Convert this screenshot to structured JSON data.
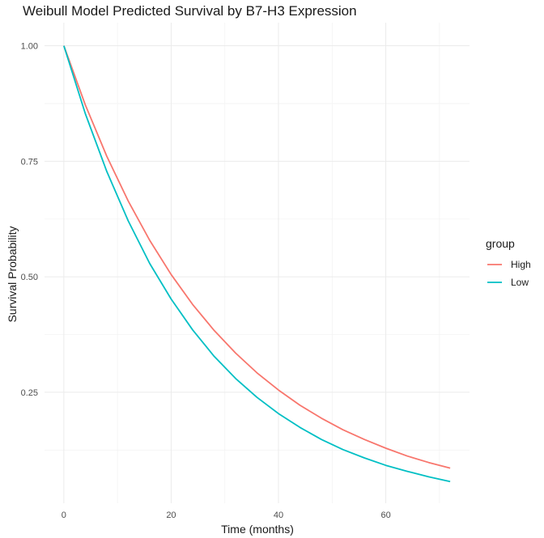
{
  "chart_data": {
    "type": "line",
    "title": "Weibull Model Predicted Survival by B7-H3 Expression",
    "xlabel": "Time (months)",
    "ylabel": "Survival Probability",
    "xlim": [
      -3.6,
      75.6
    ],
    "ylim": [
      0.01,
      1.05
    ],
    "x_ticks": [
      0,
      20,
      40,
      60
    ],
    "y_ticks": [
      0.25,
      0.5,
      0.75,
      1.0
    ],
    "x_tick_labels": [
      "0",
      "20",
      "40",
      "60"
    ],
    "y_tick_labels": [
      "0.25",
      "0.50",
      "0.75",
      "1.00"
    ],
    "grid": true,
    "legend": {
      "title": "group",
      "position": "right"
    },
    "series": [
      {
        "name": "High",
        "color": "#F8766D",
        "x": [
          0,
          4,
          8,
          12,
          16,
          20,
          24,
          28,
          32,
          36,
          40,
          44,
          48,
          52,
          56,
          60,
          64,
          68,
          72
        ],
        "y": [
          1.0,
          0.872,
          0.761,
          0.664,
          0.579,
          0.505,
          0.44,
          0.384,
          0.335,
          0.292,
          0.255,
          0.222,
          0.194,
          0.169,
          0.148,
          0.129,
          0.112,
          0.098,
          0.086
        ]
      },
      {
        "name": "Low",
        "color": "#00BFC4",
        "x": [
          0,
          4,
          8,
          12,
          16,
          20,
          24,
          28,
          32,
          36,
          40,
          44,
          48,
          52,
          56,
          60,
          64,
          68,
          72
        ],
        "y": [
          1.0,
          0.853,
          0.728,
          0.621,
          0.529,
          0.452,
          0.385,
          0.328,
          0.28,
          0.239,
          0.204,
          0.174,
          0.148,
          0.126,
          0.108,
          0.092,
          0.079,
          0.067,
          0.057
        ]
      }
    ]
  }
}
